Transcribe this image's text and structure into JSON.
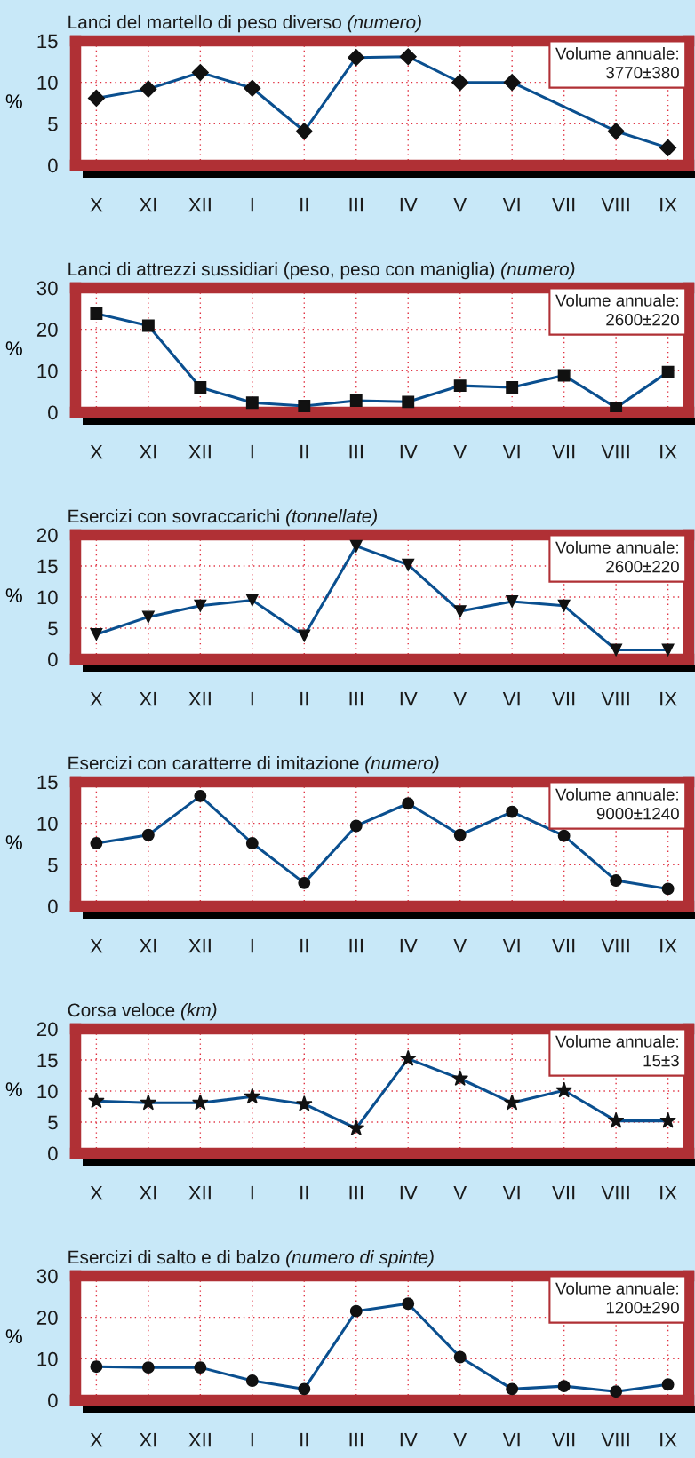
{
  "chart_data": [
    {
      "type": "line",
      "title": "Lanci del martello di peso diverso",
      "subtitle": "(numero)",
      "ylabel": "%",
      "categories": [
        "X",
        "XI",
        "XII",
        "I",
        "II",
        "III",
        "IV",
        "V",
        "VI",
        "VII",
        "VIII",
        "IX"
      ],
      "series": [
        {
          "color": "#0a4f8f",
          "values": [
            8.1,
            9.2,
            11.2,
            9.3,
            4.1,
            13.0,
            13.1,
            10.0,
            10.0,
            null,
            4.1,
            2.1
          ]
        }
      ],
      "ylim": [
        0,
        15
      ],
      "yticks": [
        0,
        5,
        10,
        15
      ],
      "grid": true,
      "marker": "diamond",
      "line_style": "solid",
      "annotations": [
        "Volume annuale:\n3770±380"
      ]
    },
    {
      "type": "line",
      "title": "Lanci di attrezzi sussidiari (peso, peso con maniglia)",
      "subtitle": "(numero)",
      "ylabel": "%",
      "categories": [
        "X",
        "XI",
        "XII",
        "I",
        "II",
        "III",
        "IV",
        "V",
        "VI",
        "VII",
        "VIII",
        "IX"
      ],
      "series": [
        {
          "color": "#0a4f8f",
          "values": [
            23.8,
            20.9,
            6.0,
            2.3,
            1.5,
            2.8,
            2.5,
            6.4,
            6.0,
            8.9,
            1.1,
            9.7
          ]
        }
      ],
      "ylim": [
        0,
        30
      ],
      "yticks": [
        0,
        10,
        20,
        30
      ],
      "grid": true,
      "marker": "square",
      "line_style": "solid",
      "annotations": [
        "Volume annuale:\n2600±220"
      ]
    },
    {
      "type": "line",
      "title": "Esercizi con sovraccarichi",
      "subtitle": "(tonnellate)",
      "ylabel": "%",
      "categories": [
        "X",
        "XI",
        "XII",
        "I",
        "II",
        "III",
        "IV",
        "V",
        "VI",
        "VII",
        "VIII",
        "IX"
      ],
      "series": [
        {
          "color": "#0a4f8f",
          "values": [
            4.0,
            6.8,
            8.6,
            9.5,
            3.8,
            18.2,
            15.2,
            7.7,
            9.3,
            8.6,
            1.5,
            1.5
          ]
        }
      ],
      "ylim": [
        0,
        20
      ],
      "yticks": [
        0,
        5,
        10,
        15,
        20
      ],
      "grid": true,
      "marker": "triangle",
      "line_style": "solid",
      "annotations": [
        "Volume annuale:\n2600±220"
      ]
    },
    {
      "type": "line",
      "title": "Esercizi con caratterre di imitazione",
      "subtitle": "(numero)",
      "ylabel": "%",
      "categories": [
        "X",
        "XI",
        "XII",
        "I",
        "II",
        "III",
        "IV",
        "V",
        "VI",
        "VII",
        "VIII",
        "IX"
      ],
      "series": [
        {
          "color": "#0a4f8f",
          "values": [
            7.6,
            8.6,
            13.3,
            7.6,
            2.8,
            9.7,
            12.4,
            8.6,
            11.4,
            8.5,
            3.1,
            2.1
          ]
        }
      ],
      "ylim": [
        0,
        15
      ],
      "yticks": [
        0,
        5,
        10,
        15
      ],
      "grid": true,
      "marker": "circle",
      "line_style": "solid",
      "annotations": [
        "Volume annuale:\n9000±1240"
      ]
    },
    {
      "type": "line",
      "title": "Corsa veloce",
      "subtitle": "(km)",
      "ylabel": "%",
      "categories": [
        "X",
        "XI",
        "XII",
        "I",
        "II",
        "III",
        "IV",
        "V",
        "VI",
        "VII",
        "VIII",
        "IX"
      ],
      "series": [
        {
          "color": "#0a4f8f",
          "values": [
            8.4,
            8.1,
            8.1,
            9.1,
            7.9,
            4.0,
            15.2,
            12.0,
            8.1,
            10.1,
            5.2,
            5.2
          ]
        }
      ],
      "ylim": [
        0,
        20
      ],
      "yticks": [
        0,
        5,
        10,
        15,
        20
      ],
      "grid": true,
      "marker": "star",
      "line_style": "solid",
      "annotations": [
        "Volume annuale:\n15±3"
      ]
    },
    {
      "type": "line",
      "title": "Esercizi di salto e di balzo",
      "subtitle": "(numero di spinte)",
      "ylabel": "%",
      "categories": [
        "X",
        "XI",
        "XII",
        "I",
        "II",
        "III",
        "IV",
        "V",
        "VI",
        "VII",
        "VIII",
        "IX"
      ],
      "series": [
        {
          "color": "#0a4f8f",
          "values": [
            8.1,
            7.9,
            7.9,
            4.7,
            2.7,
            21.5,
            23.3,
            10.4,
            2.7,
            3.4,
            2.1,
            3.8
          ]
        }
      ],
      "ylim": [
        0,
        30
      ],
      "yticks": [
        0,
        10,
        20,
        30
      ],
      "grid": true,
      "marker": "circle",
      "line_style": "solid",
      "annotations": [
        "Volume annuale:\n1200±290"
      ]
    }
  ]
}
